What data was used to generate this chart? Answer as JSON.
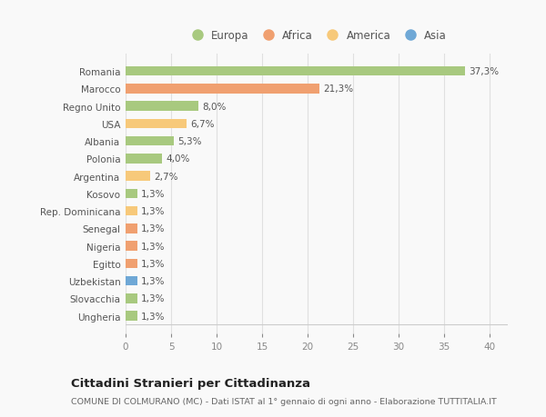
{
  "categories": [
    "Ungheria",
    "Slovacchia",
    "Uzbekistan",
    "Egitto",
    "Nigeria",
    "Senegal",
    "Rep. Dominicana",
    "Kosovo",
    "Argentina",
    "Polonia",
    "Albania",
    "USA",
    "Regno Unito",
    "Marocco",
    "Romania"
  ],
  "values": [
    1.3,
    1.3,
    1.3,
    1.3,
    1.3,
    1.3,
    1.3,
    1.3,
    2.7,
    4.0,
    5.3,
    6.7,
    8.0,
    21.3,
    37.3
  ],
  "colors": [
    "#a8c97f",
    "#a8c97f",
    "#6fa8d6",
    "#f0a070",
    "#f0a070",
    "#f0a070",
    "#f7c97a",
    "#a8c97f",
    "#f7c97a",
    "#a8c97f",
    "#a8c97f",
    "#f7c97a",
    "#a8c97f",
    "#f0a070",
    "#a8c97f"
  ],
  "labels": [
    "1,3%",
    "1,3%",
    "1,3%",
    "1,3%",
    "1,3%",
    "1,3%",
    "1,3%",
    "1,3%",
    "2,7%",
    "4,0%",
    "5,3%",
    "6,7%",
    "8,0%",
    "21,3%",
    "37,3%"
  ],
  "legend_names": [
    "Europa",
    "Africa",
    "America",
    "Asia"
  ],
  "legend_colors": [
    "#a8c97f",
    "#f0a070",
    "#f7c97a",
    "#6fa8d6"
  ],
  "xlim": [
    0,
    42
  ],
  "xticks": [
    0,
    5,
    10,
    15,
    20,
    25,
    30,
    35,
    40
  ],
  "title": "Cittadini Stranieri per Cittadinanza",
  "subtitle": "COMUNE DI COLMURANO (MC) - Dati ISTAT al 1° gennaio di ogni anno - Elaborazione TUTTITALIA.IT",
  "bg_color": "#f9f9f9",
  "grid_color": "#e0e0e0",
  "bar_height": 0.55
}
